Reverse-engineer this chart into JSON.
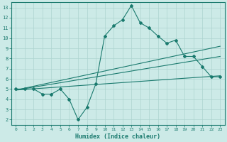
{
  "xlabel": "Humidex (Indice chaleur)",
  "xlim": [
    -0.5,
    23.5
  ],
  "ylim": [
    1.5,
    13.5
  ],
  "xticks": [
    0,
    1,
    2,
    3,
    4,
    5,
    6,
    7,
    8,
    9,
    10,
    11,
    12,
    13,
    14,
    15,
    16,
    17,
    18,
    19,
    20,
    21,
    22,
    23
  ],
  "yticks": [
    2,
    3,
    4,
    5,
    6,
    7,
    8,
    9,
    10,
    11,
    12,
    13
  ],
  "bg_color": "#cceae7",
  "line_color": "#1a7a6e",
  "grid_color": "#add4d0",
  "data_x": [
    0,
    1,
    2,
    3,
    4,
    5,
    6,
    7,
    8,
    9,
    10,
    11,
    12,
    13,
    14,
    15,
    16,
    17,
    18,
    19,
    20,
    21,
    22,
    23
  ],
  "data_y": [
    5.0,
    5.0,
    5.0,
    4.5,
    4.5,
    5.0,
    4.0,
    2.0,
    3.2,
    5.5,
    10.2,
    11.2,
    11.8,
    13.2,
    11.5,
    11.0,
    10.2,
    9.5,
    9.8,
    8.2,
    8.2,
    7.2,
    6.2,
    6.2
  ],
  "line1_x": [
    0,
    23
  ],
  "line1_y": [
    4.9,
    6.3
  ],
  "line2_x": [
    0,
    23
  ],
  "line2_y": [
    4.9,
    8.2
  ],
  "line3_x": [
    0,
    23
  ],
  "line3_y": [
    4.9,
    9.2
  ]
}
